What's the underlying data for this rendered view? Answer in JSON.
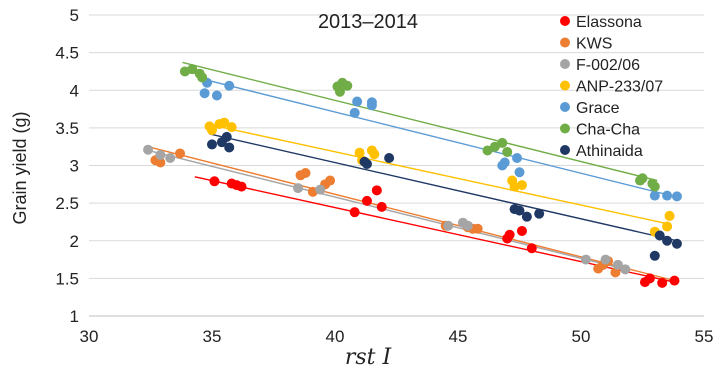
{
  "chart_data": {
    "type": "scatter",
    "title": "2013–2014",
    "xlabel": "rst I",
    "ylabel": "Grain yield (g)",
    "xlim": [
      30,
      55
    ],
    "ylim": [
      1,
      5
    ],
    "xticks": [
      "30",
      "35",
      "40",
      "45",
      "50",
      "55"
    ],
    "yticks": [
      "1",
      "1.5",
      "2",
      "2.5",
      "3",
      "3.5",
      "4",
      "4.5",
      "5"
    ],
    "grid": "horizontal",
    "legend_position": "top-right",
    "trendlines": true,
    "series": [
      {
        "name": "Elassona",
        "color": "#ff0000",
        "points": [
          [
            35.1,
            2.79
          ],
          [
            35.8,
            2.76
          ],
          [
            36.0,
            2.74
          ],
          [
            36.2,
            2.72
          ],
          [
            40.8,
            2.38
          ],
          [
            41.3,
            2.53
          ],
          [
            41.7,
            2.67
          ],
          [
            41.9,
            2.45
          ],
          [
            47.0,
            2.03
          ],
          [
            47.1,
            2.08
          ],
          [
            47.6,
            2.13
          ],
          [
            48.0,
            1.9
          ],
          [
            52.6,
            1.45
          ],
          [
            52.8,
            1.5
          ],
          [
            53.3,
            1.44
          ],
          [
            53.8,
            1.47
          ]
        ],
        "trend": [
          [
            34.3,
            2.85
          ],
          [
            53.8,
            1.45
          ]
        ]
      },
      {
        "name": "KWS",
        "color": "#ed7d31",
        "points": [
          [
            32.7,
            3.07
          ],
          [
            32.9,
            3.04
          ],
          [
            33.7,
            3.16
          ],
          [
            38.6,
            2.87
          ],
          [
            38.8,
            2.9
          ],
          [
            39.1,
            2.65
          ],
          [
            39.6,
            2.75
          ],
          [
            39.8,
            2.8
          ],
          [
            44.5,
            2.2
          ],
          [
            45.4,
            2.18
          ],
          [
            45.6,
            2.16
          ],
          [
            45.8,
            2.16
          ],
          [
            50.7,
            1.63
          ],
          [
            50.9,
            1.68
          ],
          [
            51.1,
            1.73
          ],
          [
            51.4,
            1.58
          ]
        ],
        "trend": [
          [
            32.4,
            3.25
          ],
          [
            53.8,
            1.47
          ]
        ]
      },
      {
        "name": "F-002/06",
        "color": "#a5a5a5",
        "points": [
          [
            32.4,
            3.21
          ],
          [
            32.9,
            3.14
          ],
          [
            33.3,
            3.1
          ],
          [
            38.5,
            2.7
          ],
          [
            39.4,
            2.68
          ],
          [
            44.6,
            2.2
          ],
          [
            45.2,
            2.24
          ],
          [
            45.4,
            2.2
          ],
          [
            50.2,
            1.75
          ],
          [
            51.0,
            1.75
          ],
          [
            51.5,
            1.68
          ],
          [
            51.8,
            1.62
          ]
        ],
        "trend": [
          [
            32.4,
            3.2
          ],
          [
            51.8,
            1.62
          ]
        ]
      },
      {
        "name": "ANP-233/07",
        "color": "#ffc000",
        "points": [
          [
            34.9,
            3.52
          ],
          [
            35.0,
            3.47
          ],
          [
            35.3,
            3.55
          ],
          [
            35.5,
            3.57
          ],
          [
            35.8,
            3.51
          ],
          [
            41.0,
            3.17
          ],
          [
            41.1,
            3.07
          ],
          [
            41.5,
            3.2
          ],
          [
            41.6,
            3.15
          ],
          [
            47.2,
            2.8
          ],
          [
            47.3,
            2.72
          ],
          [
            47.6,
            2.74
          ],
          [
            53.0,
            2.12
          ],
          [
            53.5,
            2.19
          ],
          [
            53.6,
            2.33
          ]
        ],
        "trend": [
          [
            34.8,
            3.55
          ],
          [
            53.6,
            2.22
          ]
        ]
      },
      {
        "name": "Grace",
        "color": "#5b9bd5",
        "points": [
          [
            34.7,
            3.96
          ],
          [
            34.8,
            4.1
          ],
          [
            35.2,
            3.93
          ],
          [
            35.7,
            4.06
          ],
          [
            40.8,
            3.7
          ],
          [
            40.9,
            3.85
          ],
          [
            41.5,
            3.8
          ],
          [
            41.5,
            3.84
          ],
          [
            46.8,
            3.0
          ],
          [
            46.9,
            3.04
          ],
          [
            47.4,
            3.1
          ],
          [
            47.5,
            2.91
          ],
          [
            53.0,
            2.6
          ],
          [
            53.5,
            2.6
          ],
          [
            53.9,
            2.59
          ]
        ],
        "trend": [
          [
            34.6,
            4.15
          ],
          [
            53.9,
            2.58
          ]
        ]
      },
      {
        "name": "Cha-Cha",
        "color": "#70ad47",
        "points": [
          [
            33.9,
            4.25
          ],
          [
            34.2,
            4.28
          ],
          [
            34.5,
            4.22
          ],
          [
            34.6,
            4.17
          ],
          [
            40.1,
            4.05
          ],
          [
            40.2,
            3.98
          ],
          [
            40.3,
            4.1
          ],
          [
            40.5,
            4.06
          ],
          [
            46.2,
            3.2
          ],
          [
            46.5,
            3.25
          ],
          [
            46.8,
            3.3
          ],
          [
            47.0,
            3.18
          ],
          [
            52.4,
            2.8
          ],
          [
            52.5,
            2.83
          ],
          [
            52.9,
            2.76
          ],
          [
            53.0,
            2.72
          ]
        ],
        "trend": [
          [
            33.8,
            4.37
          ],
          [
            53.1,
            2.8
          ]
        ]
      },
      {
        "name": "Athinaida",
        "color": "#1f3864",
        "points": [
          [
            35.0,
            3.28
          ],
          [
            35.4,
            3.31
          ],
          [
            35.6,
            3.38
          ],
          [
            35.7,
            3.24
          ],
          [
            41.2,
            3.05
          ],
          [
            41.3,
            3.02
          ],
          [
            42.2,
            3.1
          ],
          [
            47.3,
            2.42
          ],
          [
            47.5,
            2.4
          ],
          [
            47.8,
            2.32
          ],
          [
            48.3,
            2.36
          ],
          [
            53.0,
            1.8
          ],
          [
            53.2,
            2.07
          ],
          [
            53.5,
            2.0
          ],
          [
            53.9,
            1.96
          ]
        ],
        "trend": [
          [
            34.9,
            3.42
          ],
          [
            53.9,
            2.0
          ]
        ]
      }
    ]
  }
}
